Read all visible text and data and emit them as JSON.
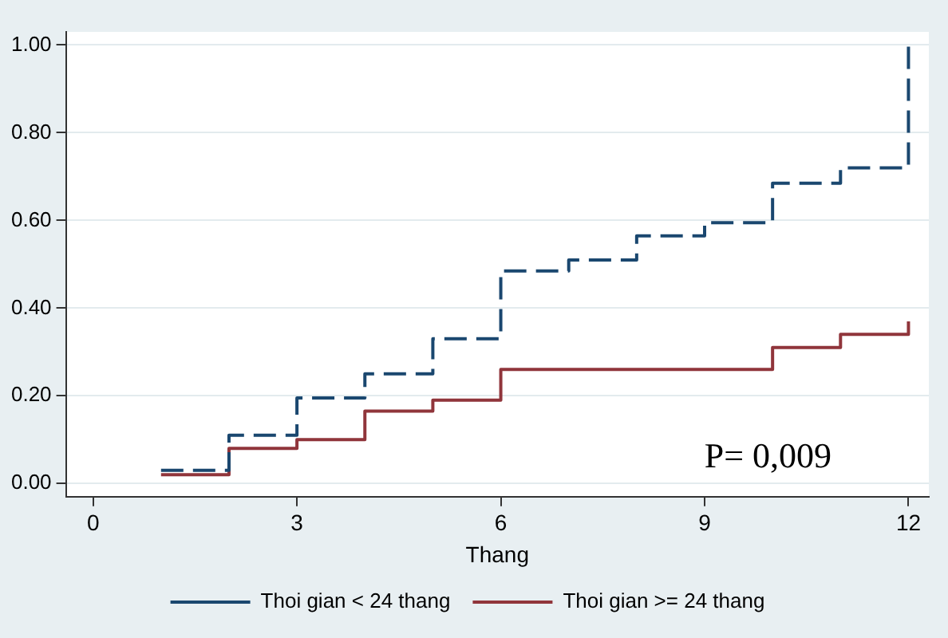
{
  "chart_data": {
    "type": "step",
    "xlabel": "Thang",
    "xlim": [
      -0.4,
      12.3
    ],
    "xticks": [
      0,
      3,
      6,
      9,
      12
    ],
    "ylim": [
      -0.03,
      1.03
    ],
    "yticks": [
      {
        "value": 0,
        "label": "0.00"
      },
      {
        "value": 0.2,
        "label": "0.20"
      },
      {
        "value": 0.4,
        "label": "0.40"
      },
      {
        "value": 0.6,
        "label": "0.60"
      },
      {
        "value": 0.8,
        "label": "0.80"
      },
      {
        "value": 1,
        "label": "1.00"
      }
    ],
    "grid": "y",
    "legend": "bottom",
    "marker": "none",
    "series": [
      {
        "name": "Thoi gian < 24 thang",
        "color": "#1a476f",
        "line_style": "dashed",
        "x": [
          1,
          2,
          3,
          4,
          5,
          6,
          7,
          8,
          9,
          10,
          11,
          12
        ],
        "values": [
          0.03,
          0.11,
          0.195,
          0.25,
          0.33,
          0.485,
          0.51,
          0.565,
          0.595,
          0.685,
          0.72,
          1.0
        ]
      },
      {
        "name": "Thoi gian >= 24 thang",
        "color": "#90353b",
        "line_style": "solid",
        "x": [
          1,
          2,
          3,
          4,
          5,
          6,
          10,
          11,
          12
        ],
        "values": [
          0.02,
          0.08,
          0.1,
          0.165,
          0.19,
          0.26,
          0.31,
          0.34,
          0.37
        ]
      }
    ],
    "annotations": [
      "P= 0,009"
    ]
  }
}
